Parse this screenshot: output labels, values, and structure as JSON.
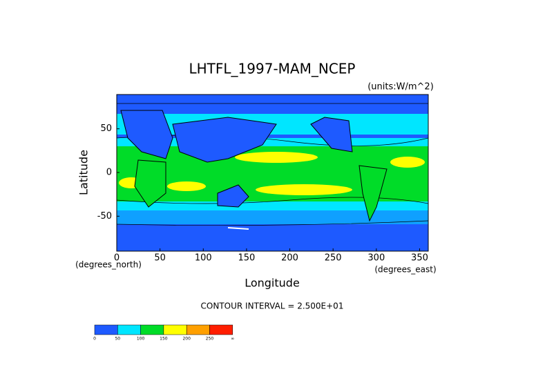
{
  "chart_data": {
    "type": "contour-map",
    "title": "LHTFL_1997-MAM_NCEP",
    "units": "(units:W/m^2)",
    "x_label": "Longitude",
    "y_label": "Latitude",
    "x_unit": "(degrees_east)",
    "y_unit": "(degrees_north)",
    "xlim": [
      0,
      360
    ],
    "ylim": [
      -90,
      90
    ],
    "xticks": [
      0,
      50,
      100,
      150,
      200,
      250,
      300,
      350
    ],
    "yticks": [
      -50,
      0,
      50
    ],
    "contour_note": "CONTOUR INTERVAL = 2.500E+01",
    "colorbar": {
      "levels": [
        0,
        50,
        100,
        150,
        200,
        250
      ],
      "top_label": "∞",
      "colors": [
        "#1e5aff",
        "#00e6ff",
        "#00dc28",
        "#ffff00",
        "#ffa000",
        "#ff1e00"
      ]
    }
  }
}
